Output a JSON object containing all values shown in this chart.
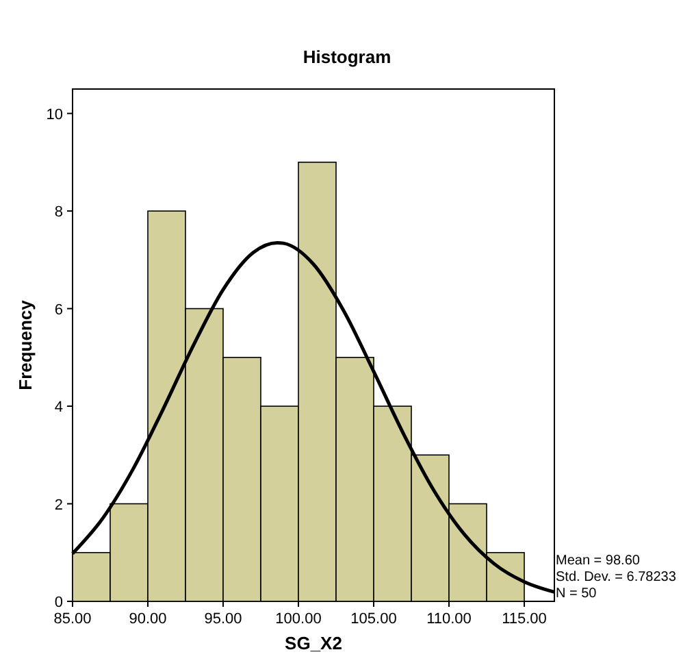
{
  "chart_data": {
    "type": "histogram",
    "title": "Histogram",
    "xlabel": "SG_X2",
    "ylabel": "Frequency",
    "bins": [
      85,
      87.5,
      90,
      92.5,
      95,
      97.5,
      100,
      102.5,
      105,
      107.5,
      110,
      112.5,
      115
    ],
    "values": [
      1,
      2,
      8,
      6,
      5,
      4,
      9,
      5,
      4,
      3,
      2,
      1
    ],
    "color": "#d4d09c",
    "series": [
      {
        "type": "line",
        "color": "#000000",
        "x": [
          85,
          87,
          89,
          91,
          93,
          95,
          97,
          98.6,
          99,
          101,
          103,
          105,
          107,
          109,
          111,
          113,
          115,
          117
        ],
        "values": [
          0.98,
          1.7,
          2.7,
          3.93,
          5.23,
          6.39,
          7.15,
          7.35,
          7.34,
          6.91,
          5.96,
          4.71,
          3.42,
          2.27,
          1.38,
          0.77,
          0.4,
          0.19
        ]
      }
    ],
    "xlim": [
      85,
      117
    ],
    "ylim": [
      0,
      10.5
    ],
    "xticks": [
      {
        "value": 85,
        "label": "85.00"
      },
      {
        "value": 90,
        "label": "90.00"
      },
      {
        "value": 95,
        "label": "95.00"
      },
      {
        "value": 100,
        "label": "100.00"
      },
      {
        "value": 105,
        "label": "105.00"
      },
      {
        "value": 110,
        "label": "110.00"
      },
      {
        "value": 115,
        "label": "115.00"
      }
    ],
    "yticks": [
      0,
      2,
      4,
      6,
      8,
      10
    ],
    "annotations": [
      "Mean = 98.60",
      "Std. Dev. = 6.78233",
      "N = 50"
    ]
  }
}
